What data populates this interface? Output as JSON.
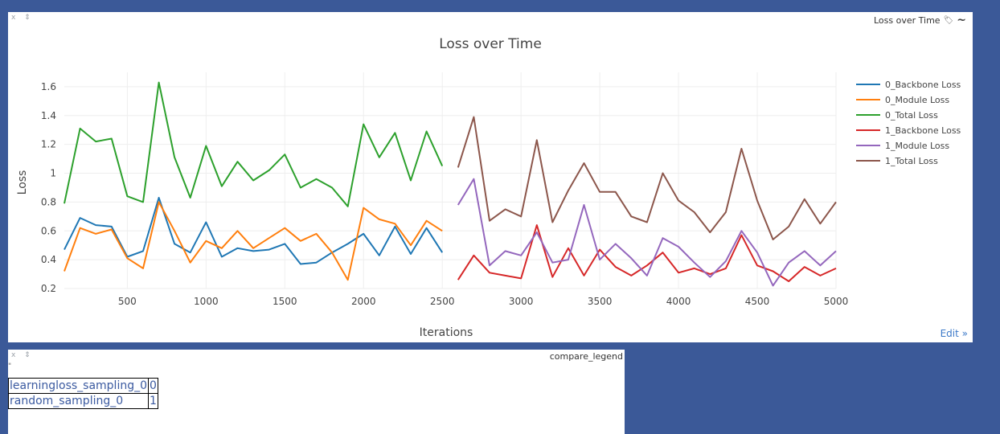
{
  "plot_pane": {
    "controls": "x ⇕",
    "title": "Loss over Time",
    "tag_icon": "tag-icon",
    "wave_icon": "wave-icon",
    "edit_label": "Edit »"
  },
  "legend_pane": {
    "controls": "x ⇕",
    "title": "compare_legend",
    "quote": "\"",
    "rows": [
      {
        "name": "learningloss_sampling_0",
        "index": "0"
      },
      {
        "name": "random_sampling_0",
        "index": "1"
      }
    ]
  },
  "chart_data": {
    "type": "line",
    "title": "Loss over Time",
    "xlabel": "Iterations",
    "ylabel": "Loss",
    "xlim": [
      100,
      5000
    ],
    "ylim": [
      0.2,
      1.7
    ],
    "xticks": [
      500,
      1000,
      1500,
      2000,
      2500,
      3000,
      3500,
      4000,
      4500,
      5000
    ],
    "yticks": [
      0.2,
      0.4,
      0.6,
      0.8,
      1,
      1.2,
      1.4,
      1.6
    ],
    "grid": true,
    "legend_position": "right",
    "series": [
      {
        "name": "0_Backbone Loss",
        "color": "#1f77b4",
        "x": [
          100,
          200,
          300,
          400,
          500,
          600,
          700,
          800,
          900,
          1000,
          1100,
          1200,
          1300,
          1400,
          1500,
          1600,
          1700,
          1800,
          1900,
          2000,
          2100,
          2200,
          2300,
          2400,
          2500
        ],
        "y": [
          0.47,
          0.69,
          0.64,
          0.63,
          0.42,
          0.46,
          0.83,
          0.51,
          0.45,
          0.66,
          0.42,
          0.48,
          0.46,
          0.47,
          0.51,
          0.37,
          0.38,
          0.45,
          0.51,
          0.58,
          0.43,
          0.63,
          0.44,
          0.62,
          0.45
        ]
      },
      {
        "name": "0_Module Loss",
        "color": "#ff7f0e",
        "x": [
          100,
          200,
          300,
          400,
          500,
          600,
          700,
          800,
          900,
          1000,
          1100,
          1200,
          1300,
          1400,
          1500,
          1600,
          1700,
          1800,
          1900,
          2000,
          2100,
          2200,
          2300,
          2400,
          2500
        ],
        "y": [
          0.32,
          0.62,
          0.58,
          0.61,
          0.41,
          0.34,
          0.8,
          0.6,
          0.38,
          0.53,
          0.48,
          0.6,
          0.48,
          0.55,
          0.62,
          0.53,
          0.58,
          0.45,
          0.26,
          0.76,
          0.68,
          0.65,
          0.5,
          0.67,
          0.6
        ]
      },
      {
        "name": "0_Total Loss",
        "color": "#2ca02c",
        "x": [
          100,
          200,
          300,
          400,
          500,
          600,
          700,
          800,
          900,
          1000,
          1100,
          1200,
          1300,
          1400,
          1500,
          1600,
          1700,
          1800,
          1900,
          2000,
          2100,
          2200,
          2300,
          2400,
          2500
        ],
        "y": [
          0.79,
          1.31,
          1.22,
          1.24,
          0.84,
          0.8,
          1.63,
          1.11,
          0.83,
          1.19,
          0.91,
          1.08,
          0.95,
          1.02,
          1.13,
          0.9,
          0.96,
          0.9,
          0.77,
          1.34,
          1.11,
          1.28,
          0.95,
          1.29,
          1.05
        ]
      },
      {
        "name": "1_Backbone Loss",
        "color": "#d62728",
        "x": [
          2600,
          2700,
          2800,
          2900,
          3000,
          3100,
          3200,
          3300,
          3400,
          3500,
          3600,
          3700,
          3800,
          3900,
          4000,
          4100,
          4200,
          4300,
          4400,
          4500,
          4600,
          4700,
          4800,
          4900,
          5000
        ],
        "y": [
          0.26,
          0.43,
          0.31,
          0.29,
          0.27,
          0.64,
          0.28,
          0.48,
          0.29,
          0.47,
          0.35,
          0.29,
          0.36,
          0.45,
          0.31,
          0.34,
          0.3,
          0.34,
          0.57,
          0.36,
          0.32,
          0.25,
          0.35,
          0.29,
          0.34
        ]
      },
      {
        "name": "1_Module Loss",
        "color": "#9467bd",
        "x": [
          2600,
          2700,
          2800,
          2900,
          3000,
          3100,
          3200,
          3300,
          3400,
          3500,
          3600,
          3700,
          3800,
          3900,
          4000,
          4100,
          4200,
          4300,
          4400,
          4500,
          4600,
          4700,
          4800,
          4900,
          5000
        ],
        "y": [
          0.78,
          0.96,
          0.36,
          0.46,
          0.43,
          0.59,
          0.38,
          0.4,
          0.78,
          0.4,
          0.51,
          0.41,
          0.29,
          0.55,
          0.49,
          0.38,
          0.28,
          0.39,
          0.6,
          0.45,
          0.22,
          0.38,
          0.46,
          0.36,
          0.46
        ]
      },
      {
        "name": "1_Total Loss",
        "color": "#8c564b",
        "x": [
          2600,
          2700,
          2800,
          2900,
          3000,
          3100,
          3200,
          3300,
          3400,
          3500,
          3600,
          3700,
          3800,
          3900,
          4000,
          4100,
          4200,
          4300,
          4400,
          4500,
          4600,
          4700,
          4800,
          4900,
          5000
        ],
        "y": [
          1.04,
          1.39,
          0.67,
          0.75,
          0.7,
          1.23,
          0.66,
          0.88,
          1.07,
          0.87,
          0.87,
          0.7,
          0.66,
          1.0,
          0.81,
          0.73,
          0.59,
          0.73,
          1.17,
          0.81,
          0.54,
          0.63,
          0.82,
          0.65,
          0.8
        ]
      }
    ]
  }
}
